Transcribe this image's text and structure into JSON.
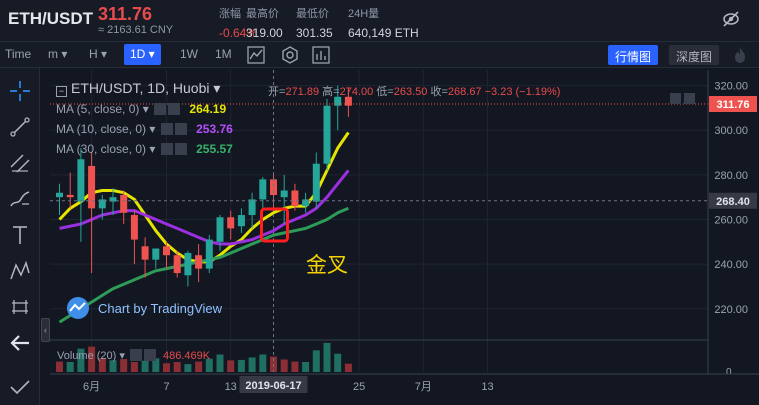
{
  "header": {
    "pair": "ETH/USDT",
    "last_price": "311.76",
    "cny_price": "≈ 2163.61 CNY",
    "stats": [
      {
        "label": "涨幅",
        "value": "-0.64%",
        "red": true
      },
      {
        "label": "最高价",
        "value": "319.00",
        "red": false
      },
      {
        "label": "最低价",
        "value": "301.35",
        "red": false
      },
      {
        "label": "24H量",
        "value": "640,149 ETH",
        "red": false
      }
    ]
  },
  "toolbar": {
    "time_label": "Time",
    "minute": "m",
    "hour": "H",
    "interval_selected": "1D",
    "w1": "1W",
    "m1": "1M",
    "view_kline": "行情图",
    "view_depth": "深度图"
  },
  "chart": {
    "title": "ETH/USDT, 1D, Huobi",
    "ohlc": {
      "open_label": "开=",
      "open": "271.89",
      "high_label": "高=",
      "high": "274.00",
      "low_label": "低=",
      "low": "263.50",
      "close_label": "收=",
      "close": "268.67",
      "change": "−3.23 (−1.19%)"
    },
    "ma": [
      {
        "label": "MA (5, close, 0)",
        "value": "264.19",
        "color": "#e5e500"
      },
      {
        "label": "MA (10, close, 0)",
        "value": "253.76",
        "color": "#9b30e0"
      },
      {
        "label": "MA (30, close, 0)",
        "value": "255.57",
        "color": "#2e9b58"
      }
    ],
    "volume_label": "Volume (20)",
    "volume_value": "486.469K",
    "watermark": "Chart by TradingView",
    "annotation": "金叉",
    "price_tag": "311.76",
    "cursor_price_tag": "268.40",
    "cursor_date_tag": "2019-06-17",
    "volume_axis_label": "0"
  },
  "chart_data": {
    "type": "candlestick",
    "y_ticks": [
      220,
      240,
      260,
      280,
      300,
      320
    ],
    "ylim": [
      206,
      327
    ],
    "x_ticks": [
      {
        "label": "6月",
        "index": 3
      },
      {
        "label": "7",
        "index": 10
      },
      {
        "label": "13",
        "index": 16
      },
      {
        "label": "25",
        "index": 28
      },
      {
        "label": "7月",
        "index": 34
      },
      {
        "label": "13",
        "index": 40
      }
    ],
    "cursor_index": 20,
    "candles": [
      {
        "o": 270,
        "h": 276,
        "l": 262,
        "c": 272
      },
      {
        "o": 271,
        "h": 281,
        "l": 265,
        "c": 270
      },
      {
        "o": 268,
        "h": 292,
        "l": 250,
        "c": 287
      },
      {
        "o": 284,
        "h": 290,
        "l": 236,
        "c": 265
      },
      {
        "o": 265,
        "h": 271,
        "l": 260,
        "c": 269
      },
      {
        "o": 268,
        "h": 274,
        "l": 262,
        "c": 270
      },
      {
        "o": 271,
        "h": 273,
        "l": 258,
        "c": 263
      },
      {
        "o": 262,
        "h": 264,
        "l": 240,
        "c": 251
      },
      {
        "o": 248,
        "h": 252,
        "l": 234,
        "c": 242
      },
      {
        "o": 242,
        "h": 247,
        "l": 238,
        "c": 247
      },
      {
        "o": 248,
        "h": 250,
        "l": 238,
        "c": 244
      },
      {
        "o": 244,
        "h": 246,
        "l": 234,
        "c": 236
      },
      {
        "o": 235,
        "h": 246,
        "l": 230,
        "c": 245
      },
      {
        "o": 244,
        "h": 249,
        "l": 232,
        "c": 238
      },
      {
        "o": 238,
        "h": 253,
        "l": 236,
        "c": 251
      },
      {
        "o": 250,
        "h": 262,
        "l": 246,
        "c": 261
      },
      {
        "o": 261,
        "h": 264,
        "l": 251,
        "c": 256
      },
      {
        "o": 257,
        "h": 265,
        "l": 254,
        "c": 262
      },
      {
        "o": 262,
        "h": 272,
        "l": 256,
        "c": 269
      },
      {
        "o": 269,
        "h": 279,
        "l": 264,
        "c": 278
      },
      {
        "o": 278,
        "h": 281,
        "l": 264,
        "c": 271
      },
      {
        "o": 270,
        "h": 280,
        "l": 258,
        "c": 273
      },
      {
        "o": 273,
        "h": 276,
        "l": 264,
        "c": 266
      },
      {
        "o": 266,
        "h": 272,
        "l": 263,
        "c": 269
      },
      {
        "o": 268,
        "h": 290,
        "l": 265,
        "c": 285
      },
      {
        "o": 285,
        "h": 314,
        "l": 282,
        "c": 311
      },
      {
        "o": 311,
        "h": 320,
        "l": 300,
        "c": 315
      },
      {
        "o": 315,
        "h": 319,
        "l": 306,
        "c": 311
      }
    ],
    "series": [
      {
        "name": "MA (5, close, 0)",
        "color": "#e5e500",
        "values": [
          260,
          265,
          268,
          272,
          273,
          273,
          272,
          269,
          262,
          255,
          249,
          245,
          242,
          241,
          241,
          244,
          248,
          251,
          256,
          260,
          263,
          265,
          266,
          266,
          272,
          282,
          292,
          299
        ]
      },
      {
        "name": "MA (10, close, 0)",
        "color": "#9b30e0",
        "values": [
          256,
          257,
          258,
          260,
          262,
          263,
          264,
          264,
          262,
          260,
          258,
          256,
          254,
          252,
          250,
          249,
          249,
          250,
          251,
          253,
          255,
          258,
          260,
          262,
          265,
          270,
          276,
          282
        ]
      },
      {
        "name": "MA (30, close, 0)",
        "color": "#2e9b58",
        "values": [
          214,
          217,
          220,
          223,
          226,
          229,
          231,
          233,
          235,
          237,
          238,
          239,
          240,
          241,
          242,
          243,
          245,
          247,
          249,
          251,
          253,
          254,
          255,
          256,
          258,
          260,
          263,
          265
        ]
      }
    ],
    "volume": [
      {
        "v": 250,
        "up": false
      },
      {
        "v": 240,
        "up": true
      },
      {
        "v": 560,
        "up": true
      },
      {
        "v": 610,
        "up": false
      },
      {
        "v": 330,
        "up": false
      },
      {
        "v": 280,
        "up": true
      },
      {
        "v": 310,
        "up": false
      },
      {
        "v": 240,
        "up": false
      },
      {
        "v": 270,
        "up": true
      },
      {
        "v": 330,
        "up": true
      },
      {
        "v": 210,
        "up": false
      },
      {
        "v": 240,
        "up": false
      },
      {
        "v": 190,
        "up": true
      },
      {
        "v": 250,
        "up": false
      },
      {
        "v": 320,
        "up": true
      },
      {
        "v": 420,
        "up": true
      },
      {
        "v": 280,
        "up": false
      },
      {
        "v": 290,
        "up": true
      },
      {
        "v": 350,
        "up": true
      },
      {
        "v": 420,
        "up": true
      },
      {
        "v": 370,
        "up": false
      },
      {
        "v": 300,
        "up": false
      },
      {
        "v": 250,
        "up": false
      },
      {
        "v": 240,
        "up": true
      },
      {
        "v": 520,
        "up": true
      },
      {
        "v": 700,
        "up": true
      },
      {
        "v": 440,
        "up": true
      },
      {
        "v": 200,
        "up": false
      }
    ],
    "highlight_index": 20,
    "last_price": 311.76,
    "cursor_price": 268.4
  }
}
